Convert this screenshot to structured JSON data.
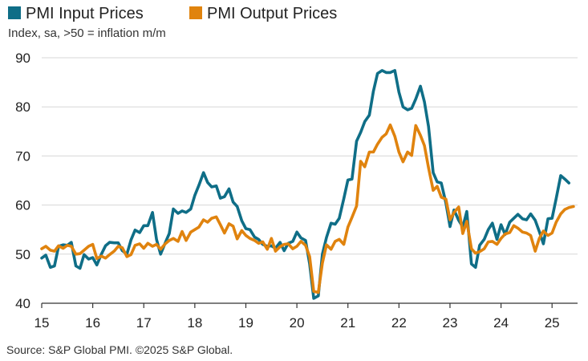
{
  "chart_data": {
    "type": "line",
    "subtitle": "Index, sa, >50 = inflation m/m",
    "source": "Source: S&P Global PMI. ©2025 S&P Global.",
    "x_tick_labels": [
      "15",
      "16",
      "17",
      "18",
      "19",
      "20",
      "21",
      "22",
      "23",
      "24",
      "25"
    ],
    "y_ticks": [
      40,
      50,
      60,
      70,
      80,
      90
    ],
    "ylim": [
      40,
      90
    ],
    "x_range": [
      2015.0,
      2025.5
    ],
    "grid": true,
    "legend_position": "top-left",
    "series": [
      {
        "name": "PMI Input Prices",
        "color": "#0f6e87",
        "points": [
          [
            2015.0,
            49.2
          ],
          [
            2015.08,
            49.8
          ],
          [
            2015.17,
            47.3
          ],
          [
            2015.25,
            47.6
          ],
          [
            2015.33,
            51.6
          ],
          [
            2015.42,
            51.9
          ],
          [
            2015.5,
            51.8
          ],
          [
            2015.58,
            52.4
          ],
          [
            2015.67,
            47.6
          ],
          [
            2015.75,
            47.1
          ],
          [
            2015.83,
            49.9
          ],
          [
            2015.92,
            49.0
          ],
          [
            2016.0,
            49.3
          ],
          [
            2016.08,
            47.8
          ],
          [
            2016.17,
            50.0
          ],
          [
            2016.25,
            51.7
          ],
          [
            2016.33,
            52.4
          ],
          [
            2016.42,
            52.3
          ],
          [
            2016.5,
            52.3
          ],
          [
            2016.58,
            50.7
          ],
          [
            2016.67,
            50.0
          ],
          [
            2016.75,
            52.9
          ],
          [
            2016.83,
            54.9
          ],
          [
            2016.92,
            54.4
          ],
          [
            2017.0,
            55.8
          ],
          [
            2017.08,
            55.8
          ],
          [
            2017.17,
            58.5
          ],
          [
            2017.25,
            53.0
          ],
          [
            2017.33,
            50.0
          ],
          [
            2017.42,
            52.3
          ],
          [
            2017.5,
            54.2
          ],
          [
            2017.58,
            59.2
          ],
          [
            2017.67,
            58.3
          ],
          [
            2017.75,
            58.8
          ],
          [
            2017.83,
            58.5
          ],
          [
            2017.92,
            59.2
          ],
          [
            2018.0,
            62.0
          ],
          [
            2018.08,
            64.0
          ],
          [
            2018.17,
            66.6
          ],
          [
            2018.25,
            64.6
          ],
          [
            2018.33,
            63.7
          ],
          [
            2018.42,
            63.9
          ],
          [
            2018.5,
            61.4
          ],
          [
            2018.58,
            61.7
          ],
          [
            2018.67,
            63.3
          ],
          [
            2018.75,
            60.6
          ],
          [
            2018.83,
            59.7
          ],
          [
            2018.92,
            56.8
          ],
          [
            2019.0,
            55.2
          ],
          [
            2019.08,
            55.0
          ],
          [
            2019.17,
            53.5
          ],
          [
            2019.25,
            53.0
          ],
          [
            2019.33,
            52.0
          ],
          [
            2019.42,
            51.6
          ],
          [
            2019.5,
            51.7
          ],
          [
            2019.58,
            51.2
          ],
          [
            2019.67,
            52.4
          ],
          [
            2019.75,
            50.7
          ],
          [
            2019.83,
            52.2
          ],
          [
            2019.92,
            52.6
          ],
          [
            2020.0,
            54.5
          ],
          [
            2020.08,
            53.3
          ],
          [
            2020.17,
            52.8
          ],
          [
            2020.25,
            48.0
          ],
          [
            2020.33,
            41.0
          ],
          [
            2020.42,
            41.5
          ],
          [
            2020.5,
            50.0
          ],
          [
            2020.58,
            53.4
          ],
          [
            2020.67,
            56.3
          ],
          [
            2020.75,
            56.1
          ],
          [
            2020.83,
            57.3
          ],
          [
            2020.92,
            61.3
          ],
          [
            2021.0,
            65.1
          ],
          [
            2021.08,
            65.3
          ],
          [
            2021.17,
            73.0
          ],
          [
            2021.25,
            74.8
          ],
          [
            2021.33,
            77.0
          ],
          [
            2021.42,
            78.3
          ],
          [
            2021.5,
            83.2
          ],
          [
            2021.58,
            86.8
          ],
          [
            2021.67,
            87.4
          ],
          [
            2021.75,
            87.0
          ],
          [
            2021.83,
            87.0
          ],
          [
            2021.92,
            87.4
          ],
          [
            2022.0,
            83.0
          ],
          [
            2022.08,
            80.0
          ],
          [
            2022.17,
            79.4
          ],
          [
            2022.25,
            79.7
          ],
          [
            2022.33,
            81.6
          ],
          [
            2022.42,
            84.2
          ],
          [
            2022.5,
            81.0
          ],
          [
            2022.58,
            76.0
          ],
          [
            2022.67,
            66.6
          ],
          [
            2022.75,
            64.7
          ],
          [
            2022.83,
            64.5
          ],
          [
            2022.92,
            60.4
          ],
          [
            2023.0,
            55.6
          ],
          [
            2023.08,
            59.0
          ],
          [
            2023.17,
            56.9
          ],
          [
            2023.25,
            55.5
          ],
          [
            2023.33,
            58.7
          ],
          [
            2023.42,
            48.0
          ],
          [
            2023.5,
            47.3
          ],
          [
            2023.58,
            51.8
          ],
          [
            2023.67,
            53.0
          ],
          [
            2023.75,
            55.0
          ],
          [
            2023.83,
            56.3
          ],
          [
            2023.92,
            53.0
          ],
          [
            2024.0,
            56.0
          ],
          [
            2024.08,
            54.0
          ],
          [
            2024.17,
            56.5
          ],
          [
            2024.25,
            57.3
          ],
          [
            2024.33,
            58.1
          ],
          [
            2024.42,
            57.2
          ],
          [
            2024.5,
            57.0
          ],
          [
            2024.58,
            58.2
          ],
          [
            2024.67,
            56.9
          ],
          [
            2024.75,
            54.6
          ],
          [
            2024.83,
            52.1
          ],
          [
            2024.92,
            57.2
          ],
          [
            2025.0,
            57.3
          ],
          [
            2025.08,
            61.3
          ],
          [
            2025.17,
            66.0
          ],
          [
            2025.25,
            65.3
          ],
          [
            2025.33,
            64.5
          ]
        ]
      },
      {
        "name": "PMI Output Prices",
        "color": "#e0830e",
        "points": [
          [
            2015.0,
            51.1
          ],
          [
            2015.08,
            51.6
          ],
          [
            2015.17,
            50.8
          ],
          [
            2015.25,
            50.6
          ],
          [
            2015.33,
            51.7
          ],
          [
            2015.42,
            51.2
          ],
          [
            2015.5,
            51.8
          ],
          [
            2015.58,
            51.6
          ],
          [
            2015.67,
            50.0
          ],
          [
            2015.75,
            50.1
          ],
          [
            2015.83,
            50.8
          ],
          [
            2015.92,
            51.6
          ],
          [
            2016.0,
            52.0
          ],
          [
            2016.08,
            49.1
          ],
          [
            2016.17,
            49.6
          ],
          [
            2016.25,
            49.2
          ],
          [
            2016.33,
            49.9
          ],
          [
            2016.42,
            50.6
          ],
          [
            2016.5,
            51.6
          ],
          [
            2016.58,
            51.3
          ],
          [
            2016.67,
            49.5
          ],
          [
            2016.75,
            49.9
          ],
          [
            2016.83,
            51.8
          ],
          [
            2016.92,
            52.1
          ],
          [
            2017.0,
            51.2
          ],
          [
            2017.08,
            52.2
          ],
          [
            2017.17,
            51.6
          ],
          [
            2017.25,
            52.0
          ],
          [
            2017.33,
            51.0
          ],
          [
            2017.42,
            52.1
          ],
          [
            2017.5,
            52.8
          ],
          [
            2017.58,
            53.2
          ],
          [
            2017.67,
            52.6
          ],
          [
            2017.75,
            54.6
          ],
          [
            2017.83,
            52.8
          ],
          [
            2017.92,
            54.5
          ],
          [
            2018.0,
            55.0
          ],
          [
            2018.08,
            55.5
          ],
          [
            2018.17,
            57.0
          ],
          [
            2018.25,
            56.5
          ],
          [
            2018.33,
            57.3
          ],
          [
            2018.42,
            57.6
          ],
          [
            2018.5,
            56.0
          ],
          [
            2018.58,
            54.3
          ],
          [
            2018.67,
            56.2
          ],
          [
            2018.75,
            55.7
          ],
          [
            2018.83,
            53.1
          ],
          [
            2018.92,
            54.8
          ],
          [
            2019.0,
            53.8
          ],
          [
            2019.08,
            53.2
          ],
          [
            2019.17,
            52.8
          ],
          [
            2019.25,
            52.2
          ],
          [
            2019.33,
            52.5
          ],
          [
            2019.42,
            51.0
          ],
          [
            2019.5,
            53.2
          ],
          [
            2019.58,
            50.6
          ],
          [
            2019.67,
            51.5
          ],
          [
            2019.75,
            52.0
          ],
          [
            2019.83,
            52.1
          ],
          [
            2019.92,
            51.1
          ],
          [
            2020.0,
            51.6
          ],
          [
            2020.08,
            52.6
          ],
          [
            2020.17,
            51.8
          ],
          [
            2020.25,
            49.5
          ],
          [
            2020.33,
            42.4
          ],
          [
            2020.42,
            42.2
          ],
          [
            2020.5,
            48.2
          ],
          [
            2020.58,
            51.9
          ],
          [
            2020.67,
            51.0
          ],
          [
            2020.75,
            52.6
          ],
          [
            2020.83,
            53.0
          ],
          [
            2020.92,
            52.0
          ],
          [
            2021.0,
            55.5
          ],
          [
            2021.08,
            57.5
          ],
          [
            2021.17,
            59.8
          ],
          [
            2021.25,
            68.9
          ],
          [
            2021.33,
            67.8
          ],
          [
            2021.42,
            70.8
          ],
          [
            2021.5,
            70.8
          ],
          [
            2021.58,
            72.4
          ],
          [
            2021.67,
            73.8
          ],
          [
            2021.75,
            74.5
          ],
          [
            2021.83,
            76.3
          ],
          [
            2021.92,
            74.0
          ],
          [
            2022.0,
            70.8
          ],
          [
            2022.08,
            68.8
          ],
          [
            2022.17,
            70.8
          ],
          [
            2022.25,
            70.1
          ],
          [
            2022.33,
            76.2
          ],
          [
            2022.42,
            74.2
          ],
          [
            2022.5,
            72.1
          ],
          [
            2022.58,
            67.6
          ],
          [
            2022.67,
            63.0
          ],
          [
            2022.75,
            63.8
          ],
          [
            2022.83,
            61.6
          ],
          [
            2022.92,
            61.2
          ],
          [
            2023.0,
            57.0
          ],
          [
            2023.08,
            58.5
          ],
          [
            2023.17,
            59.6
          ],
          [
            2023.25,
            54.2
          ],
          [
            2023.33,
            56.7
          ],
          [
            2023.42,
            51.1
          ],
          [
            2023.5,
            50.2
          ],
          [
            2023.58,
            50.5
          ],
          [
            2023.67,
            51.1
          ],
          [
            2023.75,
            52.5
          ],
          [
            2023.83,
            52.6
          ],
          [
            2023.92,
            52.0
          ],
          [
            2024.0,
            53.2
          ],
          [
            2024.08,
            54.1
          ],
          [
            2024.17,
            54.4
          ],
          [
            2024.25,
            55.8
          ],
          [
            2024.33,
            55.3
          ],
          [
            2024.42,
            54.5
          ],
          [
            2024.5,
            54.3
          ],
          [
            2024.58,
            53.8
          ],
          [
            2024.67,
            50.6
          ],
          [
            2024.75,
            53.2
          ],
          [
            2024.83,
            54.7
          ],
          [
            2024.92,
            53.8
          ],
          [
            2025.0,
            54.3
          ],
          [
            2025.08,
            56.5
          ],
          [
            2025.17,
            58.2
          ],
          [
            2025.25,
            59.1
          ],
          [
            2025.33,
            59.5
          ],
          [
            2025.42,
            59.7
          ]
        ]
      }
    ]
  }
}
